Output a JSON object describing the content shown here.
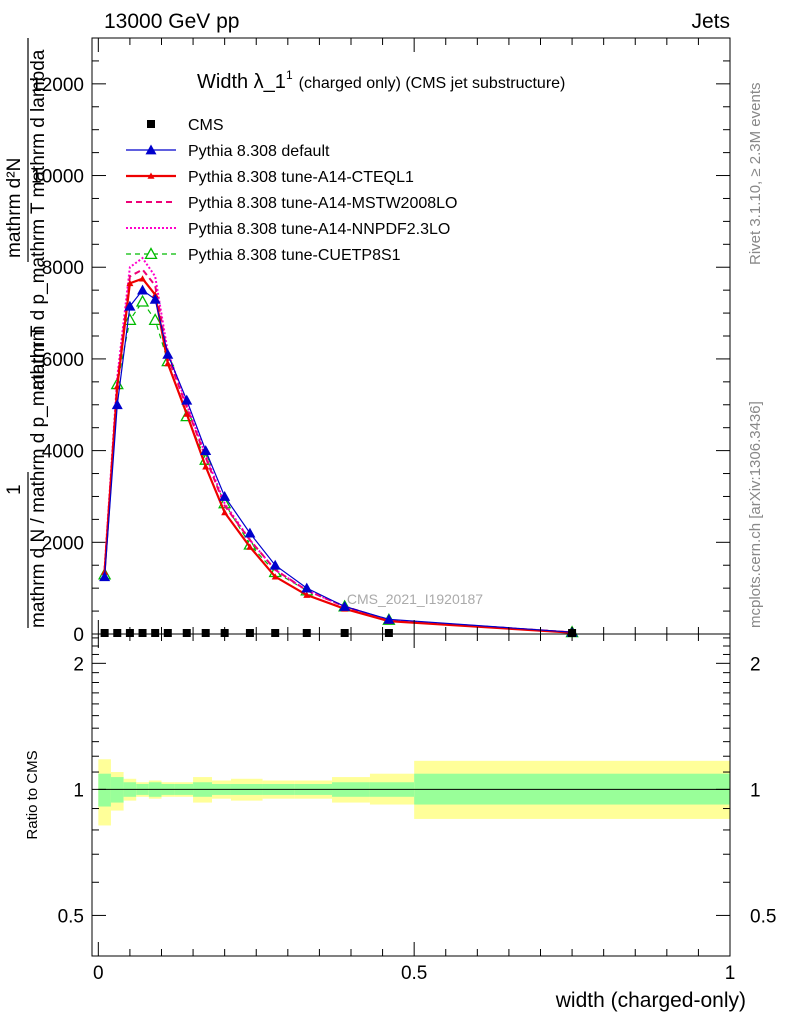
{
  "header": {
    "left": "13000 GeV pp",
    "right": "Jets"
  },
  "side_labels": {
    "rivet": "Rivet 3.1.10, ≥ 2.3M events",
    "mcplots": "mcplots.cern.ch [arXiv:1306.3436]"
  },
  "watermark": "CMS_2021_I1920187",
  "colors": {
    "cms": "#000000",
    "pythia_default": "#0000cc",
    "a14_cteql1": "#ee0000",
    "a14_mstw": "#ee0077",
    "a14_nnpdf": "#ff00cc",
    "cuetp8s1": "#00bb00",
    "band_inner": "#99ff99",
    "band_outer": "#ffff99"
  },
  "chart_data": [
    {
      "type": "line",
      "title": "Width λ_1",
      "title_sup": "1",
      "title_suffix": "(charged only) (CMS jet substructure)",
      "ylabel_numerator": "mathrm d²N",
      "ylabel_denominator_a": "mathrm d p_mathrm T mathrm d lambda",
      "ylabel_frac_1": "1",
      "ylabel_frac_2": "mathrm d N / mathrm d p_mathrm T",
      "ylim": [
        0,
        13000
      ],
      "yticks": [
        0,
        2000,
        4000,
        6000,
        8000,
        10000,
        12000
      ],
      "ytick_labels": [
        "0",
        "2000",
        "4000",
        "6000",
        "8000",
        "10000",
        "12000"
      ],
      "xlim": [
        -0.01,
        1.0
      ],
      "x": [
        0.01,
        0.03,
        0.05,
        0.07,
        0.09,
        0.11,
        0.14,
        0.17,
        0.2,
        0.24,
        0.28,
        0.33,
        0.39,
        0.46,
        0.75
      ],
      "legend_position": "top-left",
      "series": [
        {
          "name": "CMS",
          "style": "markers",
          "values": [
            0,
            0,
            0,
            0,
            0,
            0,
            0,
            0,
            0,
            0,
            0,
            0,
            0,
            0,
            0
          ]
        },
        {
          "name": "Pythia 8.308 default",
          "values": [
            1250,
            5000,
            7150,
            7500,
            7300,
            6100,
            5100,
            4000,
            3000,
            2200,
            1500,
            1000,
            600,
            320,
            40
          ]
        },
        {
          "name": "Pythia 8.308 tune-A14-CTEQL1",
          "values": [
            1350,
            5400,
            7650,
            7750,
            7400,
            5900,
            4800,
            3650,
            2650,
            1900,
            1250,
            850,
            550,
            280,
            30
          ]
        },
        {
          "name": "Pythia 8.308 tune-A14-MSTW2008LO",
          "values": [
            1400,
            5500,
            7800,
            7950,
            7600,
            6050,
            4950,
            3850,
            2800,
            2050,
            1400,
            950,
            600,
            300,
            35
          ]
        },
        {
          "name": "Pythia 8.308 tune-A14-NNPDF2.3LO",
          "values": [
            1450,
            5600,
            8000,
            8200,
            7800,
            6150,
            5000,
            3900,
            2850,
            2050,
            1400,
            950,
            600,
            300,
            35
          ]
        },
        {
          "name": "Pythia 8.308 tune-CUETP8S1",
          "values": [
            1300,
            5450,
            6850,
            7250,
            6850,
            5950,
            4750,
            3800,
            2850,
            1950,
            1350,
            950,
            600,
            310,
            40
          ]
        }
      ]
    },
    {
      "type": "area",
      "ylabel": "Ratio to CMS",
      "ylim": [
        0.4,
        2.35
      ],
      "yscale": "log",
      "yticks": [
        0.5,
        1,
        2
      ],
      "ytick_labels": [
        "0.5",
        "1",
        "2"
      ],
      "xticks": [
        0,
        0.5,
        1
      ],
      "xtick_labels": [
        "0",
        "0.5",
        "1"
      ],
      "xlabel": "width (charged-only)",
      "xlim": [
        -0.01,
        1.0
      ],
      "reference_line": 1,
      "bins": [
        {
          "x0": 0.0,
          "x1": 0.02,
          "inner": [
            0.91,
            1.09
          ],
          "outer": [
            0.82,
            1.18
          ]
        },
        {
          "x0": 0.02,
          "x1": 0.04,
          "inner": [
            0.93,
            1.07
          ],
          "outer": [
            0.89,
            1.1
          ]
        },
        {
          "x0": 0.04,
          "x1": 0.06,
          "inner": [
            0.96,
            1.04
          ],
          "outer": [
            0.94,
            1.06
          ]
        },
        {
          "x0": 0.06,
          "x1": 0.08,
          "inner": [
            0.97,
            1.03
          ],
          "outer": [
            0.96,
            1.04
          ]
        },
        {
          "x0": 0.08,
          "x1": 0.1,
          "inner": [
            0.96,
            1.04
          ],
          "outer": [
            0.95,
            1.05
          ]
        },
        {
          "x0": 0.1,
          "x1": 0.12,
          "inner": [
            0.97,
            1.03
          ],
          "outer": [
            0.96,
            1.04
          ]
        },
        {
          "x0": 0.12,
          "x1": 0.15,
          "inner": [
            0.97,
            1.03
          ],
          "outer": [
            0.96,
            1.04
          ]
        },
        {
          "x0": 0.15,
          "x1": 0.18,
          "inner": [
            0.96,
            1.04
          ],
          "outer": [
            0.93,
            1.07
          ]
        },
        {
          "x0": 0.18,
          "x1": 0.21,
          "inner": [
            0.97,
            1.03
          ],
          "outer": [
            0.95,
            1.05
          ]
        },
        {
          "x0": 0.21,
          "x1": 0.26,
          "inner": [
            0.97,
            1.03
          ],
          "outer": [
            0.94,
            1.06
          ]
        },
        {
          "x0": 0.26,
          "x1": 0.31,
          "inner": [
            0.97,
            1.03
          ],
          "outer": [
            0.95,
            1.05
          ]
        },
        {
          "x0": 0.31,
          "x1": 0.37,
          "inner": [
            0.97,
            1.03
          ],
          "outer": [
            0.95,
            1.05
          ]
        },
        {
          "x0": 0.37,
          "x1": 0.43,
          "inner": [
            0.96,
            1.04
          ],
          "outer": [
            0.93,
            1.07
          ]
        },
        {
          "x0": 0.43,
          "x1": 0.5,
          "inner": [
            0.96,
            1.04
          ],
          "outer": [
            0.92,
            1.09
          ]
        },
        {
          "x0": 0.5,
          "x1": 1.0,
          "inner": [
            0.92,
            1.09
          ],
          "outer": [
            0.85,
            1.17
          ]
        }
      ]
    }
  ]
}
